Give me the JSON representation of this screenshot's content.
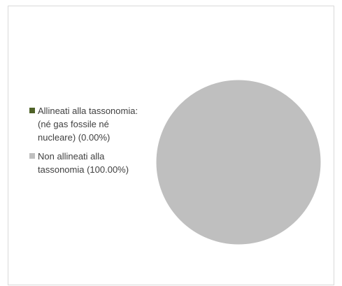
{
  "chart_data": {
    "type": "pie",
    "title": "",
    "slices": [
      {
        "label": "Allineati alla tassonomia: (né gas fossile né nucleare) (0.00%)",
        "value": 0.0,
        "color": "#4f6228"
      },
      {
        "label": "Non allineati alla tassonomia (100.00%)",
        "value": 100.0,
        "color": "#bfbfbf"
      }
    ],
    "legend_position": "left"
  }
}
